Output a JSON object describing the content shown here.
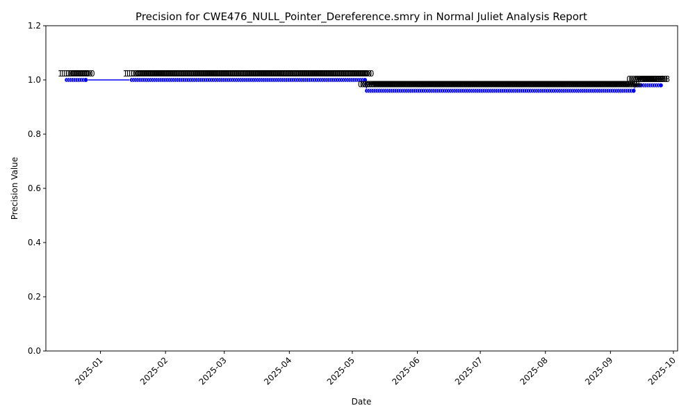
{
  "chart_data": {
    "type": "line",
    "title": "Precision for CWE476_NULL_Pointer_Dereference.smry in Normal Juliet Analysis Report",
    "xlabel": "Date",
    "ylabel": "Precision Value",
    "ylim": [
      0.0,
      1.2
    ],
    "yticks": [
      "0.0",
      "0.2",
      "0.4",
      "0.6",
      "0.8",
      "1.0",
      "1.2"
    ],
    "xlim": [
      "2024-12-06",
      "2025-10-03"
    ],
    "xticks": [
      {
        "date": "2025-01-01",
        "label": "2025-01"
      },
      {
        "date": "2025-02-01",
        "label": "2025-02"
      },
      {
        "date": "2025-03-01",
        "label": "2025-03"
      },
      {
        "date": "2025-04-01",
        "label": "2025-04"
      },
      {
        "date": "2025-05-01",
        "label": "2025-05"
      },
      {
        "date": "2025-06-01",
        "label": "2025-06"
      },
      {
        "date": "2025-07-01",
        "label": "2025-07"
      },
      {
        "date": "2025-08-01",
        "label": "2025-08"
      },
      {
        "date": "2025-09-01",
        "label": "2025-09"
      },
      {
        "date": "2025-10-01",
        "label": "2025-10"
      }
    ],
    "grid": false,
    "legend": "none",
    "line_color": "#0000ff",
    "marker_color": "#0000ff",
    "segments": [
      {
        "start": "2024-12-16",
        "end": "2024-12-25",
        "value": 1.0,
        "label": "1.00"
      },
      {
        "start": "2025-01-16",
        "end": "2025-05-07",
        "value": 1.0,
        "label": "1.00"
      },
      {
        "start": "2025-05-08",
        "end": "2025-09-12",
        "value": 0.96,
        "label": "0.96"
      },
      {
        "start": "2025-09-13",
        "end": "2025-09-25",
        "value": 0.98,
        "label": "0.98"
      }
    ]
  }
}
